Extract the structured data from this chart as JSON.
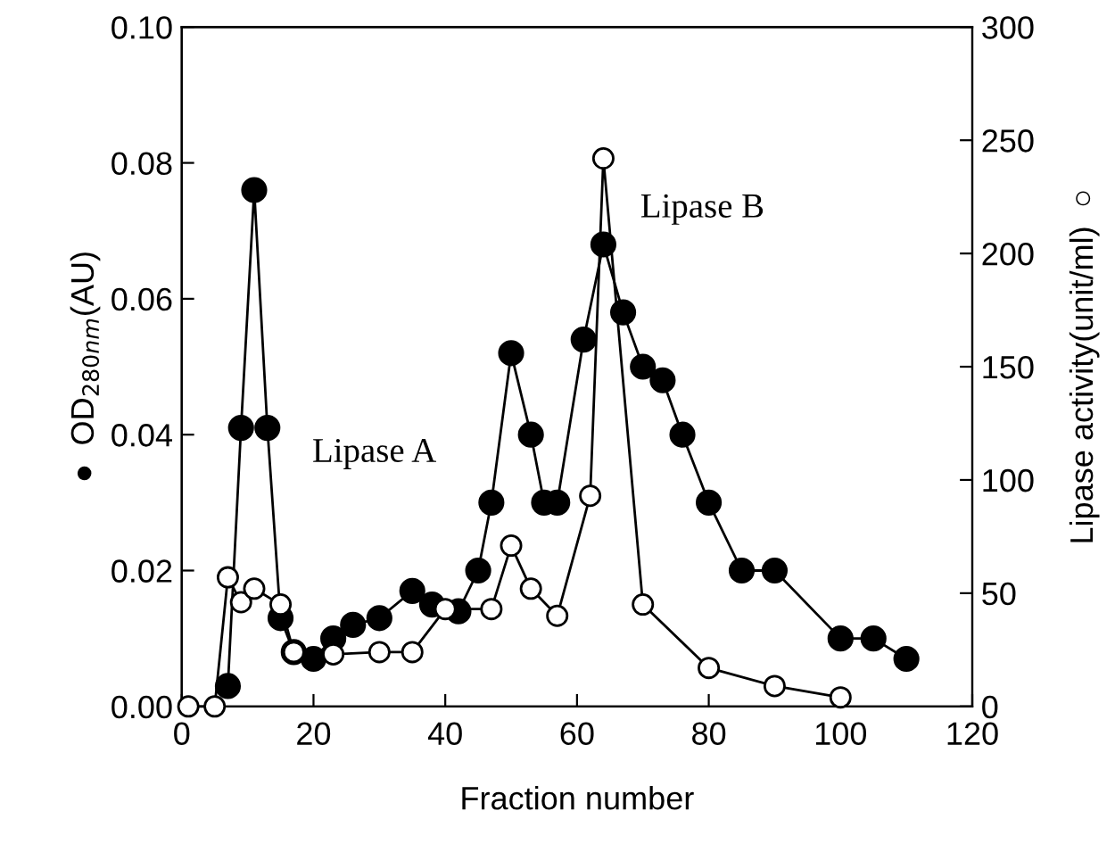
{
  "chart_data": {
    "type": "line",
    "xlabel": "Fraction number",
    "ylabel": "●  OD$_{280nm}$(AU)",
    "y2label": "Lipase activity(unit/ml)  ○",
    "xlim": [
      0,
      120
    ],
    "xticks": [
      0,
      20,
      40,
      60,
      80,
      100,
      120
    ],
    "ylim": [
      0,
      0.1
    ],
    "yticks": [
      {
        "value": 0,
        "label": "0.00"
      },
      {
        "value": 0.02,
        "label": "0.02"
      },
      {
        "value": 0.04,
        "label": "0.04"
      },
      {
        "value": 0.06,
        "label": "0.06"
      },
      {
        "value": 0.08,
        "label": "0.08"
      },
      {
        "value": 0.1,
        "label": "0.10"
      }
    ],
    "y2lim": [
      0,
      300
    ],
    "y2ticks": [
      0,
      50,
      100,
      150,
      200,
      250,
      300
    ],
    "grid": false,
    "legend": false,
    "marker": "circle",
    "line_style": "solid",
    "annotations": [
      "Lipase A",
      "Lipase B"
    ],
    "series": [
      {
        "color": "#000000",
        "x": [
          7,
          9,
          11,
          13,
          15,
          17,
          20,
          23,
          26,
          30,
          35,
          38,
          42,
          45,
          47,
          50,
          53,
          55,
          57,
          61,
          64,
          67,
          70,
          73,
          76,
          80,
          85,
          90,
          100,
          105,
          110
        ],
        "values": [
          0.003,
          0.041,
          0.076,
          0.041,
          0.013,
          0.008,
          0.007,
          0.01,
          0.012,
          0.013,
          0.017,
          0.015,
          0.014,
          0.02,
          0.03,
          0.052,
          0.04,
          0.03,
          0.03,
          0.054,
          0.068,
          0.058,
          0.05,
          0.048,
          0.04,
          0.03,
          0.02,
          0.02,
          0.01,
          0.01,
          0.007
        ]
      },
      {
        "color": "#ffffff",
        "axis": "y2",
        "x": [
          1,
          5,
          7,
          9,
          11,
          15,
          17,
          23,
          30,
          35,
          40,
          47,
          50,
          53,
          57,
          62,
          64,
          70,
          80,
          90,
          100
        ],
        "values": [
          0,
          0,
          57,
          46,
          52,
          45,
          24,
          23,
          24,
          24,
          43,
          43,
          71,
          52,
          40,
          93,
          242,
          45,
          17,
          9,
          4
        ]
      }
    ]
  }
}
